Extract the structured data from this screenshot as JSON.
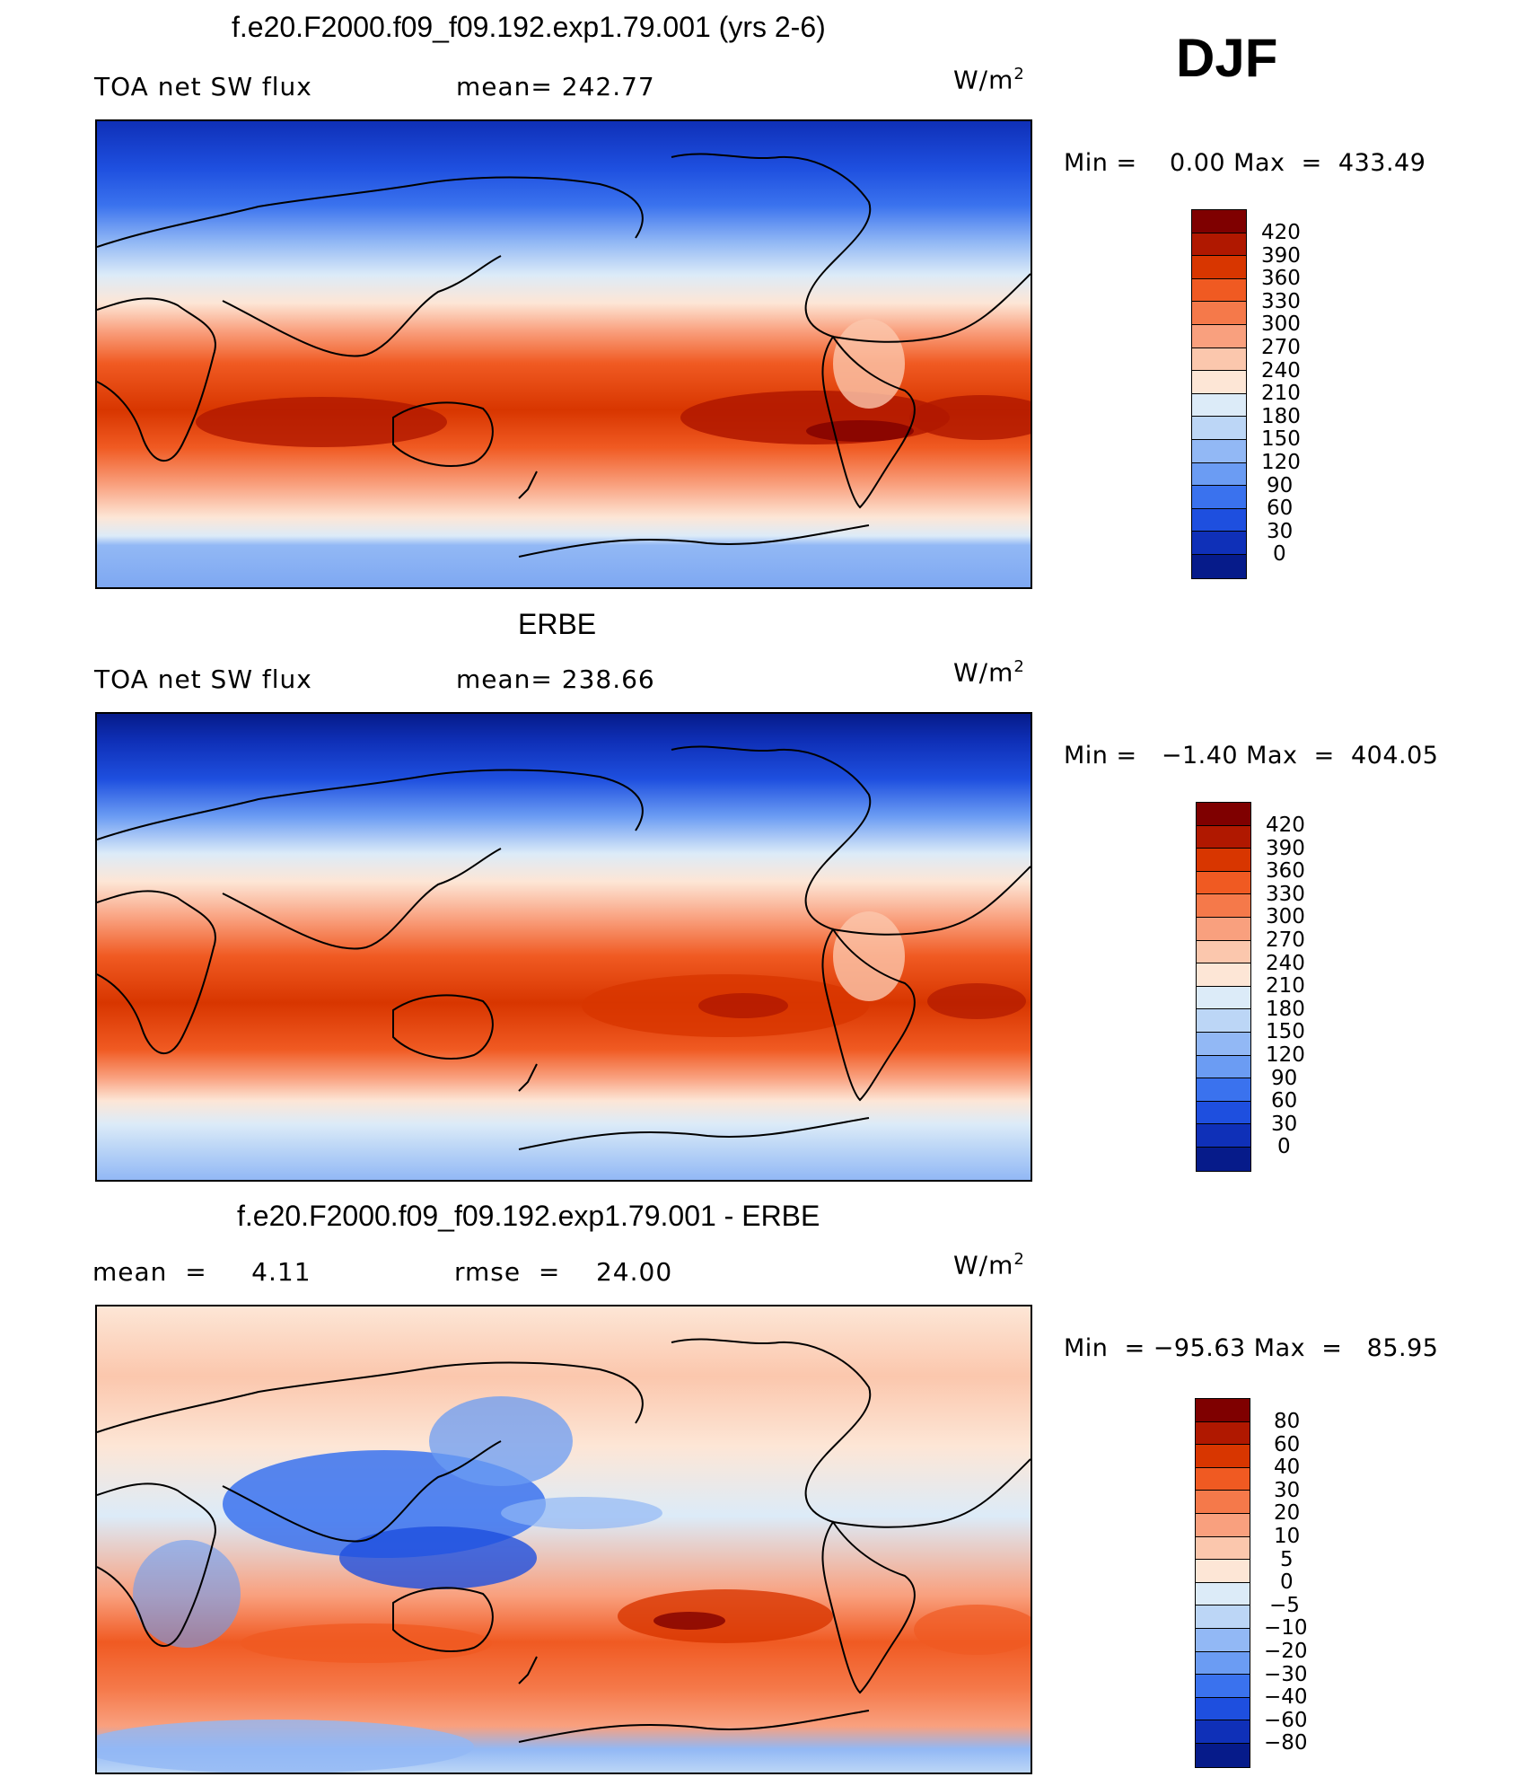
{
  "season": "DJF",
  "units": {
    "base": "W/m",
    "exp": "2"
  },
  "panels": [
    {
      "title": "f.e20.F2000.f09_f09.192.exp1.79.001 (yrs 2-6)",
      "left_label": "TOA net SW flux",
      "mid_label": "mean= 242.77",
      "minmax": "Min =    0.00 Max  =  433.49",
      "levels": [
        "420",
        "390",
        "360",
        "330",
        "300",
        "270",
        "240",
        "210",
        "180",
        "150",
        "120",
        "90",
        "60",
        "30",
        "0"
      ]
    },
    {
      "title": "ERBE",
      "left_label": "TOA net SW flux",
      "mid_label": "mean= 238.66",
      "minmax": "Min =   −1.40 Max  =  404.05",
      "levels": [
        "420",
        "390",
        "360",
        "330",
        "300",
        "270",
        "240",
        "210",
        "180",
        "150",
        "120",
        "90",
        "60",
        "30",
        "0"
      ]
    },
    {
      "title": "f.e20.F2000.f09_f09.192.exp1.79.001 - ERBE",
      "left_label": "mean  =     4.11",
      "mid_label": "rmse  =    24.00",
      "minmax": "Min  = −95.63 Max  =   85.95",
      "levels": [
        "80",
        "60",
        "40",
        "30",
        "20",
        "10",
        "5",
        "0",
        "−5",
        "−10",
        "−20",
        "−30",
        "−40",
        "−60",
        "−80"
      ]
    }
  ],
  "colors": {
    "abs_scale": [
      "#7f0000",
      "#b01800",
      "#d83600",
      "#f05a22",
      "#f5794a",
      "#f9a07e",
      "#fbc7ad",
      "#fde6d6",
      "#dcebf8",
      "#bcd6f6",
      "#92b8f5",
      "#6b9cf3",
      "#3a72ee",
      "#1e4fdf",
      "#0f30b8",
      "#061b8a"
    ],
    "diff_scale": [
      "#7f0000",
      "#b01800",
      "#d83600",
      "#f05a22",
      "#f5794a",
      "#f9a07e",
      "#fbc7ad",
      "#fde6d6",
      "#dcebf8",
      "#bcd6f6",
      "#92b8f5",
      "#6b9cf3",
      "#3a72ee",
      "#1e4fdf",
      "#0f30b8",
      "#061b8a"
    ]
  }
}
